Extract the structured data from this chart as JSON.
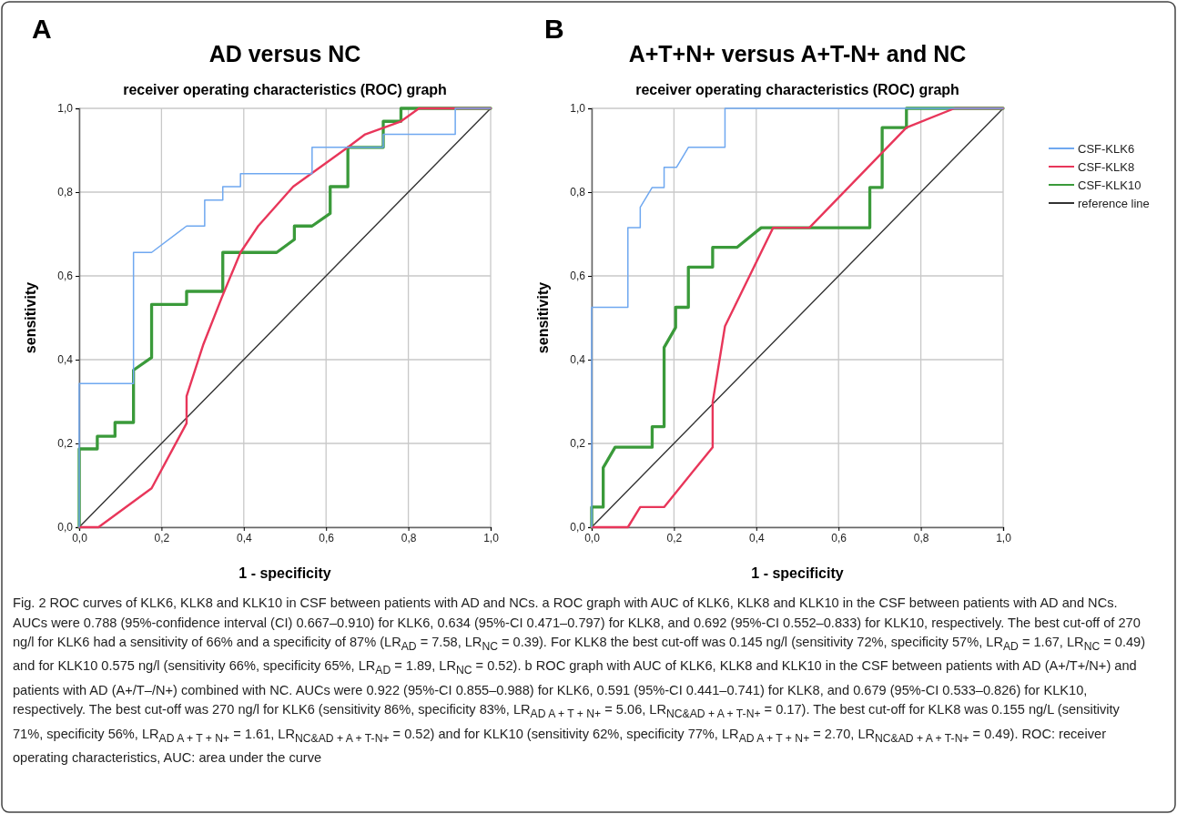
{
  "chart_data": [
    {
      "type": "line",
      "title": "AD versus NC",
      "subtitle": "receiver operating characteristics (ROC) graph",
      "xlabel": "1 - specificity",
      "ylabel": "sensitivity",
      "xlim": [
        0,
        1
      ],
      "ylim": [
        0,
        1
      ],
      "xticks": [
        {
          "value": 0,
          "label": "0,0"
        },
        {
          "value": 0.2,
          "label": "0,2"
        },
        {
          "value": 0.4,
          "label": "0,4"
        },
        {
          "value": 0.6,
          "label": "0,6"
        },
        {
          "value": 0.8,
          "label": "0,8"
        },
        {
          "value": 1,
          "label": "1,0"
        }
      ],
      "yticks": [
        {
          "value": 0,
          "label": "0,0"
        },
        {
          "value": 0.2,
          "label": "0,2"
        },
        {
          "value": 0.4,
          "label": "0,4"
        },
        {
          "value": 0.6,
          "label": "0,6"
        },
        {
          "value": 0.8,
          "label": "0,8"
        },
        {
          "value": 1,
          "label": "1,0"
        }
      ],
      "grid": true,
      "annotations": [
        "A"
      ],
      "series": [
        {
          "color": "#6fa8f0",
          "x": [
            0,
            0,
            0.132,
            0.132,
            0.176,
            0.261,
            0.305,
            0.305,
            0.349,
            0.349,
            0.392,
            0.392,
            0.566,
            0.566,
            0.739,
            0.739,
            0.914,
            0.914,
            1
          ],
          "values": [
            0,
            0.343,
            0.343,
            0.656,
            0.656,
            0.719,
            0.719,
            0.781,
            0.781,
            0.813,
            0.813,
            0.844,
            0.844,
            0.907,
            0.907,
            0.938,
            0.938,
            1,
            1
          ]
        },
        {
          "color": "#e8365a",
          "x": [
            0,
            0.047,
            0.176,
            0.261,
            0.261,
            0.302,
            0.346,
            0.392,
            0.435,
            0.52,
            0.653,
            0.695,
            0.782,
            0.826,
            1
          ],
          "values": [
            0,
            0,
            0.093,
            0.248,
            0.313,
            0.437,
            0.547,
            0.656,
            0.719,
            0.813,
            0.907,
            0.938,
            0.969,
            1,
            1
          ]
        },
        {
          "color": "#3a9a3a",
          "x": [
            0,
            0,
            0.044,
            0.044,
            0.087,
            0.087,
            0.132,
            0.132,
            0.176,
            0.176,
            0.261,
            0.261,
            0.349,
            0.349,
            0.48,
            0.523,
            0.523,
            0.566,
            0.61,
            0.61,
            0.653,
            0.653,
            0.739,
            0.739,
            0.782,
            0.782,
            1
          ],
          "values": [
            0,
            0.187,
            0.187,
            0.217,
            0.217,
            0.25,
            0.25,
            0.375,
            0.405,
            0.532,
            0.532,
            0.563,
            0.563,
            0.656,
            0.656,
            0.687,
            0.719,
            0.719,
            0.749,
            0.813,
            0.813,
            0.907,
            0.907,
            0.969,
            0.969,
            1,
            1
          ]
        },
        {
          "color": "#333333",
          "x": [
            0,
            1
          ],
          "values": [
            0,
            1
          ]
        }
      ]
    },
    {
      "type": "line",
      "title": "A+T+N+ versus A+T-N+ and NC",
      "subtitle": "receiver operating characteristics (ROC) graph",
      "xlabel": "1 - specificity",
      "ylabel": "sensitivity",
      "xlim": [
        0,
        1
      ],
      "ylim": [
        0,
        1
      ],
      "xticks": [
        {
          "value": 0,
          "label": "0,0"
        },
        {
          "value": 0.2,
          "label": "0,2"
        },
        {
          "value": 0.4,
          "label": "0,4"
        },
        {
          "value": 0.6,
          "label": "0,6"
        },
        {
          "value": 0.8,
          "label": "0,8"
        },
        {
          "value": 1,
          "label": "1,0"
        }
      ],
      "yticks": [
        {
          "value": 0,
          "label": "0,0"
        },
        {
          "value": 0.2,
          "label": "0,2"
        },
        {
          "value": 0.4,
          "label": "0,4"
        },
        {
          "value": 0.6,
          "label": "0,6"
        },
        {
          "value": 0.8,
          "label": "0,8"
        },
        {
          "value": 1,
          "label": "1,0"
        }
      ],
      "grid": true,
      "legend": "right",
      "annotations": [
        "B",
        "Fig. 2 ROC curves of KLK6, KLK8 and KLK10 in CSF between patients with AD and NCs. a ROC graph with AUC of KLK6, KLK8 and KLK10 in the CSF between patients with AD and NCs. AUCs were 0.788 (95%-confidence interval (CI) 0.667–0.910) for KLK6, 0.634 (95%-CI 0.471–0.797) for KLK8, and 0.692 (95%-CI 0.552–0.833) for KLK10, respectively. The best cut-off of 270 ng/l for KLK6 had a sensitivity of 66% and a specificity of 87% (LR$_{AD}$ = 7.58, LR$_{NC}$ = 0.39). For KLK8 the best cut-off was 0.145 ng/l (sensitivity 72%, specificity 57%, LR$_{AD}$ = 1.67, LR$_{NC}$ = 0.49) and for KLK10 0.575 ng/l (sensitivity 66%, specificity 65%, LR$_{AD}$ = 1.89, LR$_{NC}$ = 0.52). b ROC graph with AUC of KLK6, KLK8 and KLK10 in the CSF between patients with AD (A+/T+/N+) and patients with AD (A+/T–/N+) combined with NC. AUCs were 0.922 (95%-CI 0.855–0.988) for KLK6, 0.591 (95%-CI 0.441–0.741) for KLK8, and 0.679 (95%-CI 0.533–0.826) for KLK10, respectively. The best cut-off was 270 ng/l for KLK6 (sensitivity 86%, specificity 83%, LR$_{AD A + T + N+}$ = 5.06, LR$_{NC&AD + A + T-N+}$ = 0.17). The best cut-off for KLK8 was 0.155 ng/L (sensitivity 71%, specificity 56%, LR$_{AD A + T + N+}$ = 1.61, LR$_{NC&AD + A + T-N+}$ = 0.52) and for KLK10 (sensitivity 62%, specificity 77%, LR$_{AD A + T + N+}$ = 2.70, LR$_{NC&AD + A + T-N+}$ = 0.49). ROC: receiver operating characteristics, AUC: area under the curve"
      ],
      "series": [
        {
          "name": "CSF-KLK6",
          "color": "#6fa8f0",
          "x": [
            0,
            0,
            0.088,
            0.088,
            0.118,
            0.118,
            0.147,
            0.176,
            0.176,
            0.206,
            0.235,
            0.324,
            0.324,
            1
          ],
          "values": [
            0,
            0.525,
            0.525,
            0.715,
            0.715,
            0.764,
            0.811,
            0.811,
            0.859,
            0.859,
            0.907,
            0.907,
            1,
            1
          ]
        },
        {
          "name": "CSF-KLK8",
          "color": "#e8365a",
          "x": [
            0,
            0.088,
            0.118,
            0.176,
            0.294,
            0.294,
            0.324,
            0.441,
            0.529,
            0.765,
            0.882,
            1
          ],
          "values": [
            0,
            0,
            0.048,
            0.048,
            0.191,
            0.298,
            0.48,
            0.715,
            0.715,
            0.954,
            1,
            1
          ]
        },
        {
          "name": "CSF-KLK10",
          "color": "#3a9a3a",
          "x": [
            0,
            0,
            0.028,
            0.028,
            0.057,
            0.147,
            0.147,
            0.176,
            0.176,
            0.204,
            0.204,
            0.235,
            0.235,
            0.294,
            0.294,
            0.353,
            0.412,
            0.676,
            0.676,
            0.706,
            0.706,
            0.765,
            0.765,
            1
          ],
          "values": [
            0,
            0.048,
            0.048,
            0.142,
            0.191,
            0.191,
            0.24,
            0.24,
            0.429,
            0.477,
            0.525,
            0.525,
            0.621,
            0.621,
            0.668,
            0.668,
            0.715,
            0.715,
            0.811,
            0.811,
            0.954,
            0.954,
            1,
            1
          ]
        },
        {
          "name": "reference line",
          "color": "#333333",
          "x": [
            0,
            1
          ],
          "values": [
            0,
            1
          ]
        }
      ]
    }
  ]
}
